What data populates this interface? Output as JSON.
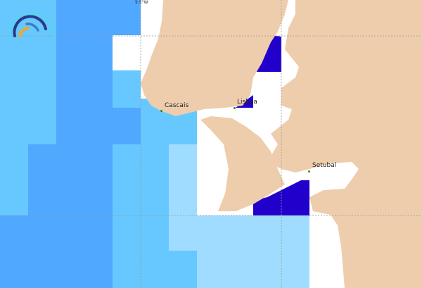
{
  "map": {
    "colors": {
      "land": "#eecdad",
      "sea_light": "#66c8ff",
      "sea_mid": "#50a8ff",
      "sea_pale": "#a0dcff",
      "highlight": "#2200cc",
      "water": "#ffffff"
    },
    "grid_label": "9.5°W",
    "places": [
      {
        "name": "Cascais"
      },
      {
        "name": "Lisboa"
      },
      {
        "name": "Setubal"
      }
    ],
    "logo": "wave-arc-logo"
  }
}
